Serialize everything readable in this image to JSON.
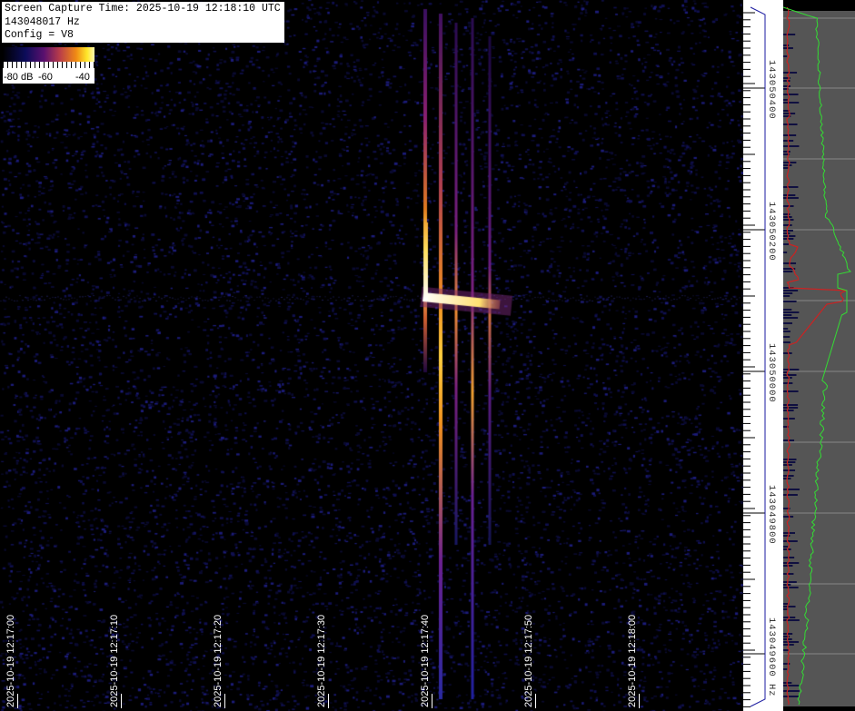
{
  "info": {
    "capture_time": "Screen Capture Time: 2025-10-19 12:18:10 UTC",
    "frequency": "143048017 Hz",
    "config": "Config = V8"
  },
  "colorbar": {
    "label_min": "-80 dB",
    "label_mid": "-60",
    "label_max": "-40"
  },
  "time_axis": {
    "labels": [
      "2025-10-19 12:17:00",
      "2025-10-19 12:17:10",
      "2025-10-19 12:17:20",
      "2025-10-19 12:17:30",
      "2025-10-19 12:17:40",
      "2025-10-19 12:17:50",
      "2025-10-19 12:18:00"
    ]
  },
  "freq_axis": {
    "labels": [
      "143050400",
      "143050200",
      "143050000",
      "143049800",
      "143049600 Hz"
    ]
  },
  "colors": {
    "background": "#000000",
    "spectrum_panel": "#555555",
    "peak_trace": "#cc2222",
    "avg_trace": "#33dd33",
    "axis_line": "#1a1aa0"
  }
}
